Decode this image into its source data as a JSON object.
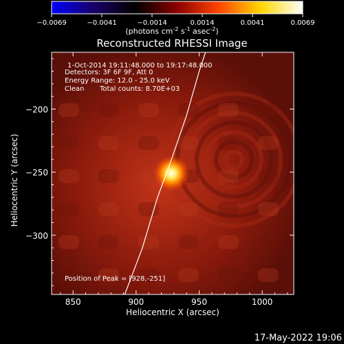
{
  "colorbar": {
    "ticks": [
      "-0.0069",
      "-0.0041",
      "-0.0014",
      "0.0014",
      "0.0041",
      "0.0069"
    ],
    "units_pre": "(photons cm",
    "units_exp1": "-2",
    "units_mid1": " s",
    "units_exp2": "-1",
    "units_mid2": " asec",
    "units_exp3": "-2",
    "units_post": ")",
    "colors": [
      "#0000ff",
      "#1a0066",
      "#000000",
      "#8b0000",
      "#ff4500",
      "#ffd700",
      "#ffffff"
    ]
  },
  "chart_data": {
    "type": "heatmap",
    "title": "Reconstructed RHESSI Image",
    "xlabel": "Heliocentric X (arcsec)",
    "ylabel": "Heliocentric Y (arcsec)",
    "xlim": [
      833,
      1025
    ],
    "ylim": [
      -347,
      -155
    ],
    "x_ticks": [
      850,
      900,
      950,
      1000
    ],
    "y_ticks": [
      -200,
      -250,
      -300
    ],
    "colormap_range": [
      -0.0069,
      0.0069
    ],
    "peak": {
      "x": 928,
      "y": -251
    },
    "limb_curve": [
      [
        891,
        -347
      ],
      [
        905,
        -310
      ],
      [
        917,
        -270
      ],
      [
        928,
        -240
      ],
      [
        940,
        -205
      ],
      [
        950,
        -170
      ],
      [
        955,
        -155
      ]
    ],
    "annotations": {
      "time": "1-Oct-2014 19:11:48.000 to 19:17:48.000",
      "detectors": "Detectors: 3F 6F 9F, Att 0",
      "energy": "Energy Range: 12.0 - 25.0 keV",
      "clean_label": "Clean",
      "counts": "Total counts: 8.70E+03",
      "peak_text": "Position of Peak = [928,-251]"
    }
  },
  "footer": {
    "timestamp": "17-May-2022 19:06"
  }
}
